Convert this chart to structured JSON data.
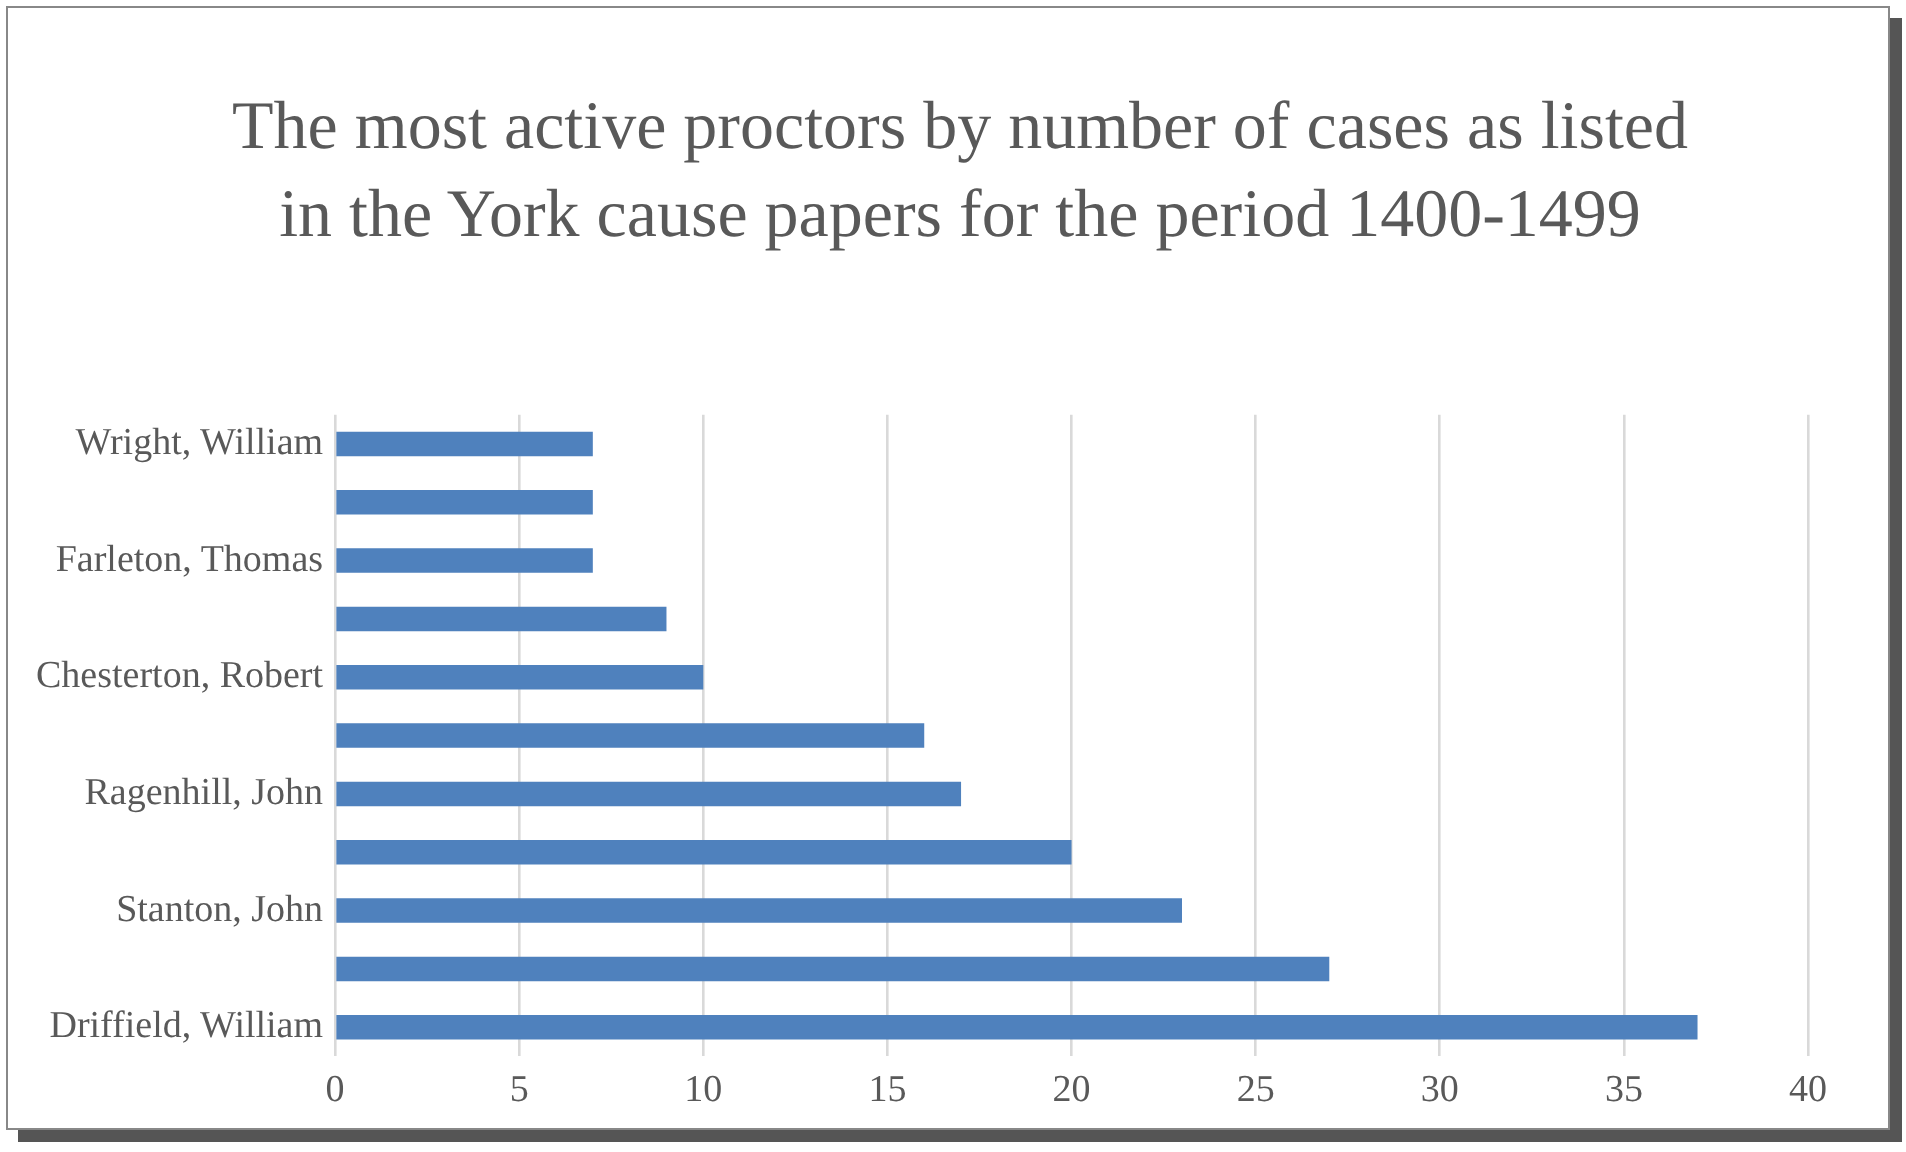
{
  "chart_data": {
    "type": "bar",
    "orientation": "horizontal",
    "title": "The most active proctors by number of cases as listed in the York cause papers for the period 1400-1499",
    "categories": [
      "Wright, William",
      null,
      "Farleton, Thomas",
      null,
      "Chesterton, Robert",
      null,
      "Ragenhill, John",
      null,
      "Stanton, John",
      null,
      "Driffield, William"
    ],
    "values": [
      7,
      7,
      7,
      9,
      10,
      16,
      17,
      20,
      23,
      27,
      37
    ],
    "color": "#4f81bd",
    "xlim": [
      0,
      40
    ],
    "xticks": [
      0,
      5,
      10,
      15,
      20,
      25,
      30,
      35,
      40
    ],
    "grid": "x",
    "legend": false
  }
}
